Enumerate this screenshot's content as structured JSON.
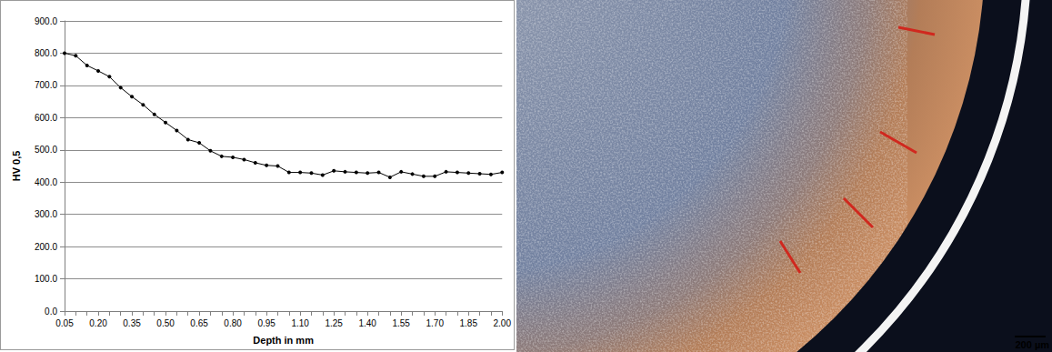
{
  "chart_data": {
    "type": "line",
    "x_label": "Depth in mm",
    "y_label": "HV 0,5",
    "categories": [
      "0.05",
      null,
      null,
      "0.20",
      null,
      null,
      "0.35",
      null,
      null,
      "0.50",
      null,
      null,
      "0.65",
      null,
      null,
      "0.80",
      null,
      null,
      "0.95",
      null,
      null,
      "1.10",
      null,
      null,
      "1.25",
      null,
      null,
      "1.40",
      null,
      null,
      "1.55",
      null,
      null,
      "1.70",
      null,
      null,
      "1.85",
      null,
      null,
      "2.00"
    ],
    "values": [
      800,
      792,
      762,
      745,
      727,
      693,
      665,
      640,
      610,
      585,
      560,
      532,
      522,
      497,
      480,
      477,
      470,
      460,
      452,
      450,
      430,
      430,
      428,
      422,
      435,
      432,
      430,
      428,
      430,
      415,
      432,
      425,
      418,
      418,
      432,
      430,
      428,
      426,
      424,
      430
    ],
    "color": "#000000",
    "marker": "circle",
    "ylim": [
      0,
      900
    ],
    "yticks": [
      {
        "value": 0,
        "label": "0.0"
      },
      {
        "value": 100,
        "label": "100.0"
      },
      {
        "value": 200,
        "label": "200.0"
      },
      {
        "value": 300,
        "label": "300.0"
      },
      {
        "value": 400,
        "label": "400.0"
      },
      {
        "value": 500,
        "label": "500.0"
      },
      {
        "value": 600,
        "label": "600.0"
      },
      {
        "value": 700,
        "label": "700.0"
      },
      {
        "value": 800,
        "label": "800.0"
      },
      {
        "value": 900,
        "label": "900.0"
      }
    ],
    "grid": true,
    "annotations": [
      "200 µm"
    ]
  }
}
